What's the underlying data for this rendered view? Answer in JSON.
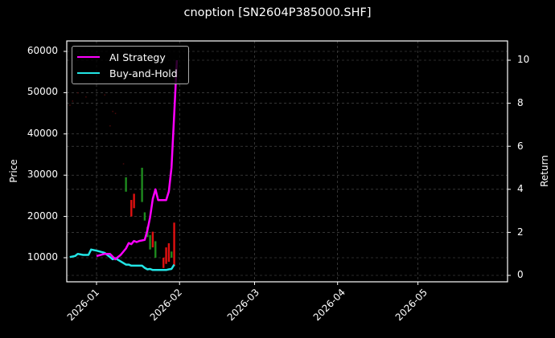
{
  "title": "cnoption [SN2604P385000.SHF]",
  "chart_data": {
    "type": "line",
    "title": "cnoption [SN2604P385000.SHF]",
    "xlabel": "",
    "ylabel": "Price",
    "ylabel_right": "Return",
    "ylim": [
      4500,
      62500
    ],
    "ylim_right": [
      -0.3,
      10.9
    ],
    "x_ticks": [
      "2026-01",
      "2026-02",
      "2026-03",
      "2026-04",
      "2026-05"
    ],
    "y_ticks": [
      10000,
      20000,
      30000,
      40000,
      50000,
      60000
    ],
    "y_ticks_right": [
      0,
      2,
      4,
      6,
      8,
      10
    ],
    "grid": true,
    "legend_position": "upper left",
    "background": "#000000",
    "series": [
      {
        "name": "AI Strategy",
        "axis": "right",
        "color": "#ff00ff",
        "x": [
          "2026-01-01",
          "2026-01-04",
          "2026-01-06",
          "2026-01-08",
          "2026-01-10",
          "2026-01-12",
          "2026-01-13",
          "2026-01-14",
          "2026-01-15",
          "2026-01-16",
          "2026-01-17",
          "2026-01-19",
          "2026-01-20",
          "2026-01-21",
          "2026-01-22",
          "2026-01-23",
          "2026-01-24",
          "2026-01-25",
          "2026-01-27",
          "2026-01-28",
          "2026-01-29",
          "2026-01-30",
          "2026-01-31"
        ],
        "values": [
          0.9,
          1.0,
          1.0,
          0.75,
          0.95,
          1.25,
          1.5,
          1.45,
          1.6,
          1.55,
          1.6,
          1.65,
          2.1,
          2.7,
          3.55,
          4.0,
          3.5,
          3.5,
          3.5,
          3.9,
          5.0,
          7.5,
          10.0
        ]
      },
      {
        "name": "Buy-and-Hold",
        "axis": "right",
        "color": "#22e6e6",
        "x": [
          "2025-12-22",
          "2025-12-24",
          "2025-12-25",
          "2025-12-27",
          "2025-12-29",
          "2025-12-30",
          "2026-01-01",
          "2026-01-04",
          "2026-01-06",
          "2026-01-07",
          "2026-01-08",
          "2026-01-10",
          "2026-01-12",
          "2026-01-13",
          "2026-01-14",
          "2026-01-15",
          "2026-01-18",
          "2026-01-19",
          "2026-01-20",
          "2026-01-21",
          "2026-01-22",
          "2026-01-23",
          "2026-01-27",
          "2026-01-28",
          "2026-01-29",
          "2026-01-30"
        ],
        "values": [
          0.85,
          0.9,
          1.0,
          0.95,
          0.95,
          1.2,
          1.15,
          1.05,
          0.85,
          0.75,
          0.8,
          0.65,
          0.5,
          0.5,
          0.45,
          0.45,
          0.45,
          0.35,
          0.28,
          0.3,
          0.25,
          0.25,
          0.25,
          0.28,
          0.3,
          0.5
        ]
      }
    ],
    "candles": {
      "axis": "left",
      "up_color": "#1e8a1e",
      "down_color": "#e01010",
      "items": [
        {
          "x": "2026-01-12",
          "low": 26000,
          "high": 29500,
          "dir": "up"
        },
        {
          "x": "2026-01-14",
          "low": 20000,
          "high": 24000,
          "dir": "down"
        },
        {
          "x": "2026-01-15",
          "low": 22000,
          "high": 25500,
          "dir": "down"
        },
        {
          "x": "2026-01-18",
          "low": 23500,
          "high": 31800,
          "dir": "up"
        },
        {
          "x": "2026-01-19",
          "low": 19000,
          "high": 21000,
          "dir": "up"
        },
        {
          "x": "2026-01-20",
          "low": 15000,
          "high": 17500,
          "dir": "up"
        },
        {
          "x": "2026-01-21",
          "low": 12000,
          "high": 15500,
          "dir": "up"
        },
        {
          "x": "2026-01-22",
          "low": 12500,
          "high": 16300,
          "dir": "down"
        },
        {
          "x": "2026-01-23",
          "low": 10000,
          "high": 14000,
          "dir": "up"
        },
        {
          "x": "2026-01-26",
          "low": 7500,
          "high": 10000,
          "dir": "down"
        },
        {
          "x": "2026-01-27",
          "low": 8500,
          "high": 12500,
          "dir": "down"
        },
        {
          "x": "2026-01-28",
          "low": 9000,
          "high": 13500,
          "dir": "down"
        },
        {
          "x": "2026-01-29",
          "low": 10000,
          "high": 11500,
          "dir": "up"
        },
        {
          "x": "2026-01-30",
          "low": 8000,
          "high": 18500,
          "dir": "down"
        }
      ],
      "faint_points": [
        {
          "x": "2025-12-22",
          "y": 47000
        },
        {
          "x": "2025-12-23",
          "y": 48000
        },
        {
          "x": "2025-12-25",
          "y": 50000
        },
        {
          "x": "2025-12-28",
          "y": 49000
        },
        {
          "x": "2026-01-04",
          "y": 49500
        },
        {
          "x": "2026-01-07",
          "y": 45500
        },
        {
          "x": "2026-01-08",
          "y": 45000
        },
        {
          "x": "2026-01-06",
          "y": 42000
        },
        {
          "x": "2026-01-11",
          "y": 32800
        }
      ]
    }
  },
  "legend": {
    "items": [
      {
        "label": "AI Strategy",
        "color": "#ff00ff"
      },
      {
        "label": "Buy-and-Hold",
        "color": "#22e6e6"
      }
    ]
  },
  "axes": {
    "left_label": "Price",
    "right_label": "Return",
    "left_ticks": [
      "60000",
      "50000",
      "40000",
      "30000",
      "20000",
      "10000"
    ],
    "right_ticks": [
      "10",
      "8",
      "6",
      "4",
      "2",
      "0"
    ],
    "x_ticks": [
      "2026-01",
      "2026-02",
      "2026-03",
      "2026-04",
      "2026-05"
    ]
  }
}
